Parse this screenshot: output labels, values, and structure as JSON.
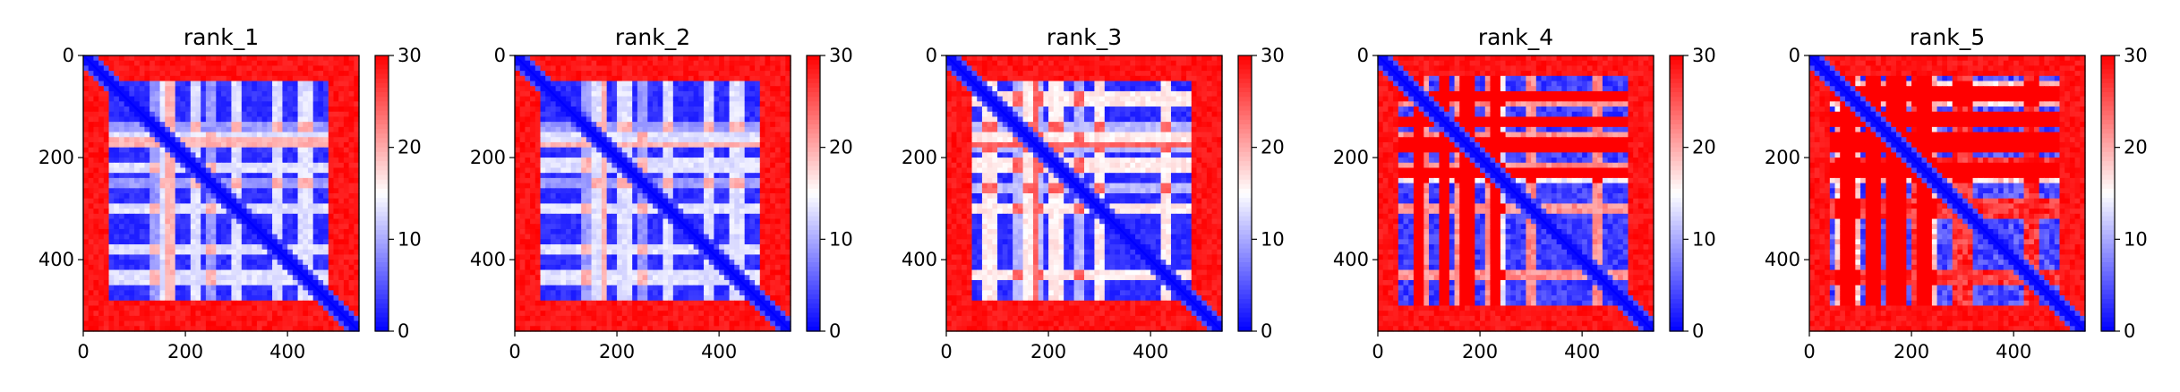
{
  "figure": {
    "panel_count": 5
  },
  "colors": {
    "low": "#0000ff",
    "mid": "#ffffff",
    "high": "#ff0000",
    "axis": "#000000"
  },
  "chart_data": [
    {
      "type": "heatmap",
      "title": "rank_1",
      "colormap": "bwr",
      "size": 540,
      "vmin": 0,
      "vmax": 30,
      "colorbar_ticks": [
        "0",
        "10",
        "20",
        "30"
      ],
      "x_ticks": [
        "0",
        "200",
        "400"
      ],
      "y_ticks": [
        "0",
        "200",
        "400"
      ],
      "x_tick_values": [
        0,
        200,
        400
      ],
      "y_tick_values": [
        0,
        200,
        400
      ],
      "xlim": [
        0,
        540
      ],
      "ylim": [
        540,
        0
      ],
      "domain": [
        50,
        480
      ],
      "gap_bands": [
        [
          155,
          180
        ],
        [
          210,
          230
        ],
        [
          290,
          305
        ],
        [
          370,
          385
        ],
        [
          420,
          445
        ]
      ],
      "gap_columns": [
        [
          130,
          150
        ],
        [
          165,
          175
        ],
        [
          240,
          255
        ]
      ],
      "gap_intensity": 0.35,
      "noise": 0.08
    },
    {
      "type": "heatmap",
      "title": "rank_2",
      "colormap": "bwr",
      "size": 540,
      "vmin": 0,
      "vmax": 30,
      "colorbar_ticks": [
        "0",
        "10",
        "20",
        "30"
      ],
      "x_ticks": [
        "0",
        "200",
        "400"
      ],
      "y_ticks": [
        "0",
        "200",
        "400"
      ],
      "x_tick_values": [
        0,
        200,
        400
      ],
      "y_tick_values": [
        0,
        200,
        400
      ],
      "xlim": [
        0,
        540
      ],
      "ylim": [
        540,
        0
      ],
      "domain": [
        50,
        480
      ],
      "gap_bands": [
        [
          155,
          180
        ],
        [
          205,
          228
        ],
        [
          295,
          308
        ],
        [
          372,
          386
        ],
        [
          425,
          445
        ]
      ],
      "gap_columns": [
        [
          130,
          148
        ],
        [
          168,
          178
        ],
        [
          245,
          255
        ]
      ],
      "gap_intensity": 0.35,
      "noise": 0.08
    },
    {
      "type": "heatmap",
      "title": "rank_3",
      "colormap": "bwr",
      "size": 540,
      "vmin": 0,
      "vmax": 30,
      "colorbar_ticks": [
        "0",
        "10",
        "20",
        "30"
      ],
      "x_ticks": [
        "0",
        "200",
        "400"
      ],
      "y_ticks": [
        "0",
        "200",
        "400"
      ],
      "x_tick_values": [
        0,
        200,
        400
      ],
      "y_tick_values": [
        0,
        200,
        400
      ],
      "xlim": [
        0,
        540
      ],
      "ylim": [
        540,
        0
      ],
      "domain": [
        50,
        480
      ],
      "gap_bands": [
        [
          75,
          95
        ],
        [
          150,
          175
        ],
        [
          205,
          225
        ],
        [
          290,
          305
        ],
        [
          420,
          440
        ]
      ],
      "gap_columns": [
        [
          130,
          145
        ],
        [
          175,
          185
        ],
        [
          255,
          265
        ]
      ],
      "gap_intensity": 0.45,
      "noise": 0.08
    },
    {
      "type": "heatmap",
      "title": "rank_4",
      "colormap": "bwr",
      "size": 540,
      "vmin": 0,
      "vmax": 30,
      "colorbar_ticks": [
        "0",
        "10",
        "20",
        "30"
      ],
      "x_ticks": [
        "0",
        "200",
        "400"
      ],
      "y_ticks": [
        "0",
        "200",
        "400"
      ],
      "x_tick_values": [
        0,
        200,
        400
      ],
      "y_tick_values": [
        0,
        200,
        400
      ],
      "xlim": [
        0,
        540
      ],
      "ylim": [
        540,
        0
      ],
      "domain": [
        40,
        490
      ],
      "gap_bands": [
        [
          70,
          95
        ],
        [
          120,
          140
        ],
        [
          150,
          185
        ],
        [
          210,
          235
        ],
        [
          290,
          310
        ],
        [
          420,
          440
        ]
      ],
      "gap_columns": [
        [
          70,
          90
        ],
        [
          120,
          140
        ],
        [
          160,
          185
        ],
        [
          225,
          245
        ]
      ],
      "gap_intensity": 0.6,
      "noise": 0.14
    },
    {
      "type": "heatmap",
      "title": "rank_5",
      "colormap": "bwr",
      "size": 540,
      "vmin": 0,
      "vmax": 30,
      "colorbar_ticks": [
        "0",
        "10",
        "20",
        "30"
      ],
      "x_ticks": [
        "0",
        "200",
        "400"
      ],
      "y_ticks": [
        "0",
        "200",
        "400"
      ],
      "x_tick_values": [
        0,
        200,
        400
      ],
      "y_tick_values": [
        0,
        200,
        400
      ],
      "xlim": [
        0,
        540
      ],
      "ylim": [
        540,
        0
      ],
      "domain": [
        40,
        490
      ],
      "gap_bands": [
        [
          60,
          90
        ],
        [
          110,
          135
        ],
        [
          150,
          185
        ],
        [
          205,
          240
        ],
        [
          280,
          315
        ],
        [
          420,
          445
        ]
      ],
      "gap_columns": [
        [
          55,
          95
        ],
        [
          115,
          140
        ],
        [
          155,
          190
        ],
        [
          215,
          250
        ]
      ],
      "gap_intensity": 0.75,
      "noise": 0.2
    }
  ]
}
